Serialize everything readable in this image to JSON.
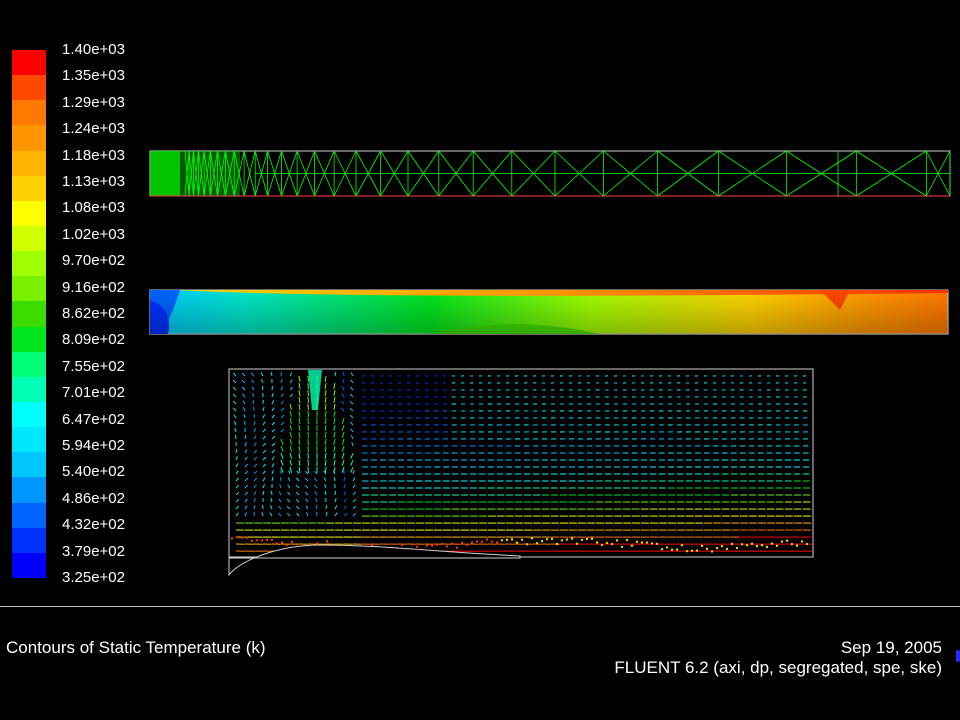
{
  "legend": {
    "labels": [
      "1.40e+03",
      "1.35e+03",
      "1.29e+03",
      "1.24e+03",
      "1.18e+03",
      "1.13e+03",
      "1.08e+03",
      "1.02e+03",
      "9.70e+02",
      "9.16e+02",
      "8.62e+02",
      "8.09e+02",
      "7.55e+02",
      "7.01e+02",
      "6.47e+02",
      "5.94e+02",
      "5.40e+02",
      "4.86e+02",
      "4.32e+02",
      "3.79e+02",
      "3.25e+02"
    ],
    "colors": [
      "#ff0000",
      "#ff4800",
      "#ff7800",
      "#ff9600",
      "#ffb400",
      "#ffd200",
      "#ffff00",
      "#d2ff00",
      "#a0ff00",
      "#78f000",
      "#3cdc00",
      "#00e61e",
      "#00ff78",
      "#00ffb4",
      "#00ffff",
      "#00e6ff",
      "#00c8ff",
      "#0096ff",
      "#0064ff",
      "#0032ff",
      "#0000ff"
    ]
  },
  "footer": {
    "caption": "Contours of Static Temperature (k)",
    "date": "Sep 19, 2005",
    "solver": "FLUENT 6.2 (axi, dp, segregated, spe, ske)"
  }
}
